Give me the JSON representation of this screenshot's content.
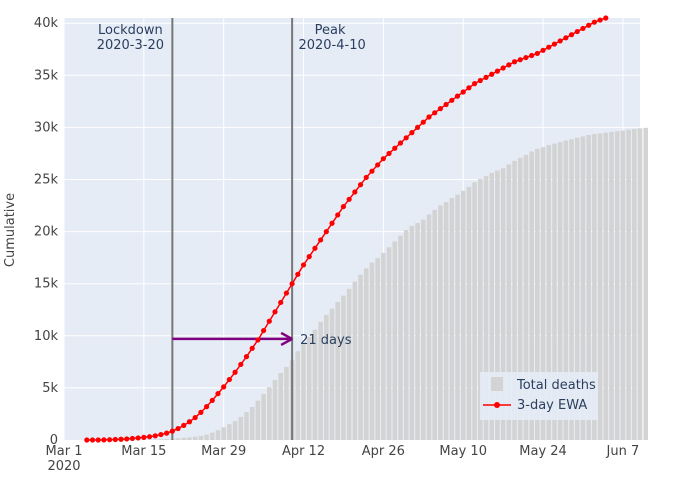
{
  "chart_data": {
    "type": "bar+line",
    "ylabel": "Cumulative",
    "xlabel": "",
    "x_start": "2020-03-01",
    "x_end": "2020-06-10",
    "ylim": [
      0,
      40500
    ],
    "grid": true,
    "x_tick_labels": [
      "Mar 1",
      "Mar 15",
      "Mar 29",
      "Apr 12",
      "Apr 26",
      "May 10",
      "May 24",
      "Jun 7"
    ],
    "x_tick_sublabel": "2020",
    "y_tick_values": [
      0,
      5000,
      10000,
      15000,
      20000,
      25000,
      30000,
      35000,
      40000
    ],
    "y_tick_labels": [
      "0",
      "5k",
      "10k",
      "15k",
      "20k",
      "25k",
      "30k",
      "35k",
      "40k"
    ],
    "bars_start": "2020-03-07",
    "bar_values": [
      1,
      1,
      2,
      3,
      5,
      6,
      9,
      13,
      20,
      30,
      45,
      66,
      94,
      128,
      164,
      203,
      247,
      308,
      397,
      509,
      708,
      941,
      1210,
      1522,
      1810,
      2223,
      2680,
      3163,
      3769,
      4424,
      5061,
      5749,
      6434,
      7013,
      7683,
      8529,
      9208,
      9897,
      10584,
      11332,
      12008,
      12595,
      13244,
      13853,
      14499,
      15203,
      15854,
      16470,
      17011,
      17449,
      17952,
      18505,
      19045,
      19603,
      20138,
      20537,
      20821,
      21154,
      21639,
      22085,
      22518,
      22829,
      23213,
      23526,
      23914,
      24297,
      24734,
      25045,
      25322,
      25629,
      25856,
      26077,
      26441,
      26786,
      27088,
      27348,
      27685,
      27935,
      28100,
      28309,
      28456,
      28588,
      28733,
      28860,
      29006,
      29134,
      29270,
      29358,
      29413,
      29497,
      29564,
      29628,
      29705,
      29783,
      29850,
      29916,
      29957
    ],
    "series": [
      {
        "name": "Total deaths",
        "color": "#d3d3d3",
        "style": "bar"
      },
      {
        "name": "3-day EWA",
        "color": "#ff0000",
        "style": "line+markers",
        "start": "2020-03-05",
        "values": [
          0,
          0,
          0,
          10,
          30,
          50,
          70,
          100,
          150,
          200,
          250,
          320,
          400,
          520,
          660,
          850,
          1100,
          1400,
          1750,
          2150,
          2650,
          3200,
          3800,
          4450,
          5100,
          5800,
          6500,
          7250,
          8000,
          8800,
          9600,
          10500,
          11400,
          12300,
          13200,
          14100,
          15000,
          15900,
          16800,
          17600,
          18400,
          19200,
          20000,
          20800,
          21600,
          22400,
          23100,
          23800,
          24500,
          25200,
          25800,
          26400,
          27000,
          27500,
          28000,
          28500,
          29000,
          29500,
          30000,
          30500,
          31000,
          31400,
          31800,
          32200,
          32600,
          33000,
          33400,
          33800,
          34200,
          34500,
          34800,
          35100,
          35400,
          35700,
          36000,
          36300,
          36500,
          36700,
          36900,
          37100,
          37400,
          37700,
          38000,
          38300,
          38600,
          38900,
          39200,
          39500,
          39800,
          40100,
          40300,
          40500
        ]
      }
    ],
    "vertical_lines": [
      {
        "date": "2020-03-20",
        "label1": "Lockdown",
        "label2": "2020-3-20",
        "color": "#777777"
      },
      {
        "date": "2020-04-10",
        "label1": "Peak",
        "label2": "2020-4-10",
        "color": "#777777"
      }
    ],
    "arrow": {
      "from": "2020-03-20",
      "to": "2020-04-10",
      "y": 9700,
      "label": "21 days",
      "color": "#800080"
    },
    "legend_position": "bottom-right"
  }
}
